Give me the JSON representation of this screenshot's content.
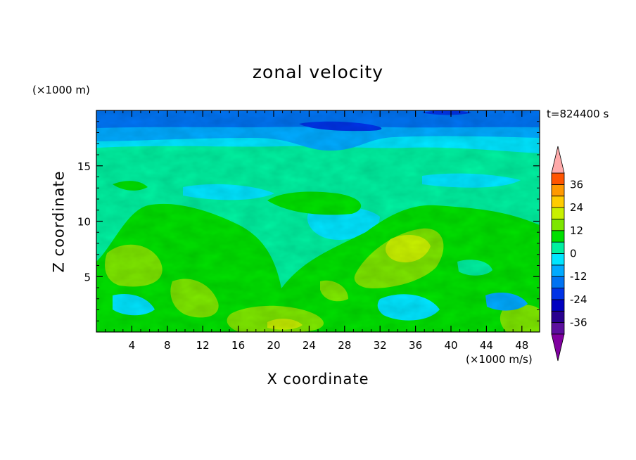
{
  "chart_data": {
    "type": "heatmap",
    "title": "zonal velocity",
    "xlabel": "X coordinate",
    "ylabel": "Z coordinate",
    "x_unit": "(×1000 m/s)",
    "y_unit": "(×1000 m)",
    "time_label": "t=824400 s",
    "xlim": [
      0,
      50
    ],
    "ylim": [
      0,
      20
    ],
    "x_ticks": [
      "4",
      "8",
      "12",
      "16",
      "20",
      "24",
      "28",
      "32",
      "36",
      "40",
      "44",
      "48"
    ],
    "y_ticks": [
      "5",
      "10",
      "15"
    ],
    "colorbar": {
      "levels": [
        -42,
        -36,
        -30,
        -24,
        -18,
        -12,
        -6,
        0,
        6,
        12,
        18,
        24,
        30,
        36,
        42
      ],
      "colors": [
        "#5c0f9e",
        "#29008f",
        "#0000c0",
        "#0033e6",
        "#0073f2",
        "#00aaff",
        "#00e5ff",
        "#00f0a0",
        "#00e000",
        "#7de600",
        "#c8f000",
        "#ffcc00",
        "#ff9900",
        "#ff5500",
        "#ff1a1a"
      ],
      "under_color": "#8000a0",
      "over_color": "#ffaaaa",
      "tick_labels": [
        "-36",
        "-24",
        "-12",
        "0",
        "12",
        "24",
        "36"
      ]
    }
  }
}
